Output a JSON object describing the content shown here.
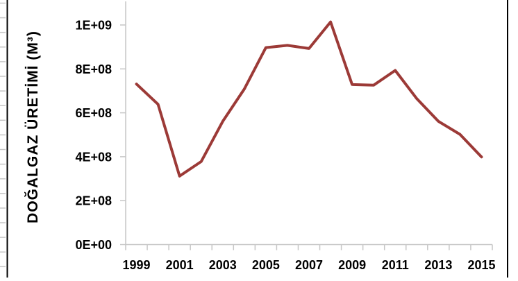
{
  "chart_data": {
    "type": "line",
    "title": "",
    "xlabel": "",
    "ylabel": "DOĞALGAZ ÜRETİMİ (M³)",
    "categories": [
      1999,
      2000,
      2001,
      2002,
      2003,
      2004,
      2005,
      2006,
      2007,
      2008,
      2009,
      2010,
      2011,
      2012,
      2013,
      2014,
      2015
    ],
    "values": [
      731000000,
      639000000,
      312000000,
      378000000,
      561000000,
      708000000,
      897000000,
      907000000,
      893000000,
      1014000000,
      729000000,
      726000000,
      793000000,
      664000000,
      561000000,
      502000000,
      399000000
    ],
    "ylim": [
      0,
      1000000000
    ],
    "ytick_labels": [
      "0E+00",
      "2E+08",
      "4E+08",
      "6E+08",
      "8E+08",
      "1E+09"
    ],
    "xtick_labels": [
      "1999",
      "2001",
      "2003",
      "2005",
      "2007",
      "2009",
      "2011",
      "2013",
      "2015"
    ],
    "grid": false,
    "legend": false,
    "colors": {
      "line": "#9C3A37",
      "axis": "#C6C6C6",
      "frame": "#000000",
      "text": "#000000",
      "background": "#FFFFFF"
    }
  }
}
